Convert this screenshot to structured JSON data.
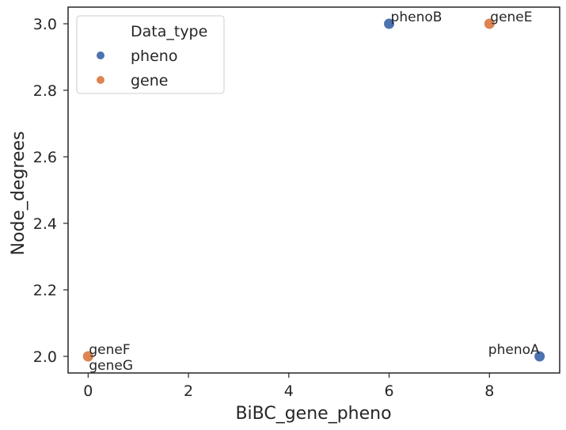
{
  "chart_data": {
    "type": "scatter",
    "xlabel": "BiBC_gene_pheno",
    "ylabel": "Node_degrees",
    "xlim": [
      -0.4,
      9.4
    ],
    "ylim": [
      1.95,
      3.05
    ],
    "x_ticks": [
      0,
      2,
      4,
      6,
      8
    ],
    "y_ticks": [
      2.0,
      2.2,
      2.4,
      2.6,
      2.8,
      3.0
    ],
    "x_tick_labels": [
      "0",
      "2",
      "4",
      "6",
      "8"
    ],
    "y_tick_labels": [
      "2.0",
      "2.2",
      "2.4",
      "2.6",
      "2.8",
      "3.0"
    ],
    "grid": false,
    "legend": {
      "title": "Data_type",
      "placement": "top-left",
      "entries": [
        {
          "name": "pheno",
          "color": "#4c72b0"
        },
        {
          "name": "gene",
          "color": "#dd8452"
        }
      ]
    },
    "series": [
      {
        "name": "pheno",
        "color": "#4c72b0",
        "points": [
          {
            "label": "phenoB",
            "x": 6,
            "y": 3.0
          },
          {
            "label": "phenoA",
            "x": 9,
            "y": 2.0
          }
        ]
      },
      {
        "name": "gene",
        "color": "#dd8452",
        "points": [
          {
            "label": "geneE",
            "x": 8,
            "y": 3.0
          },
          {
            "label": "geneF",
            "x": 0,
            "y": 2.0
          },
          {
            "label": "geneG",
            "x": 0,
            "y": 2.0
          }
        ]
      }
    ]
  }
}
